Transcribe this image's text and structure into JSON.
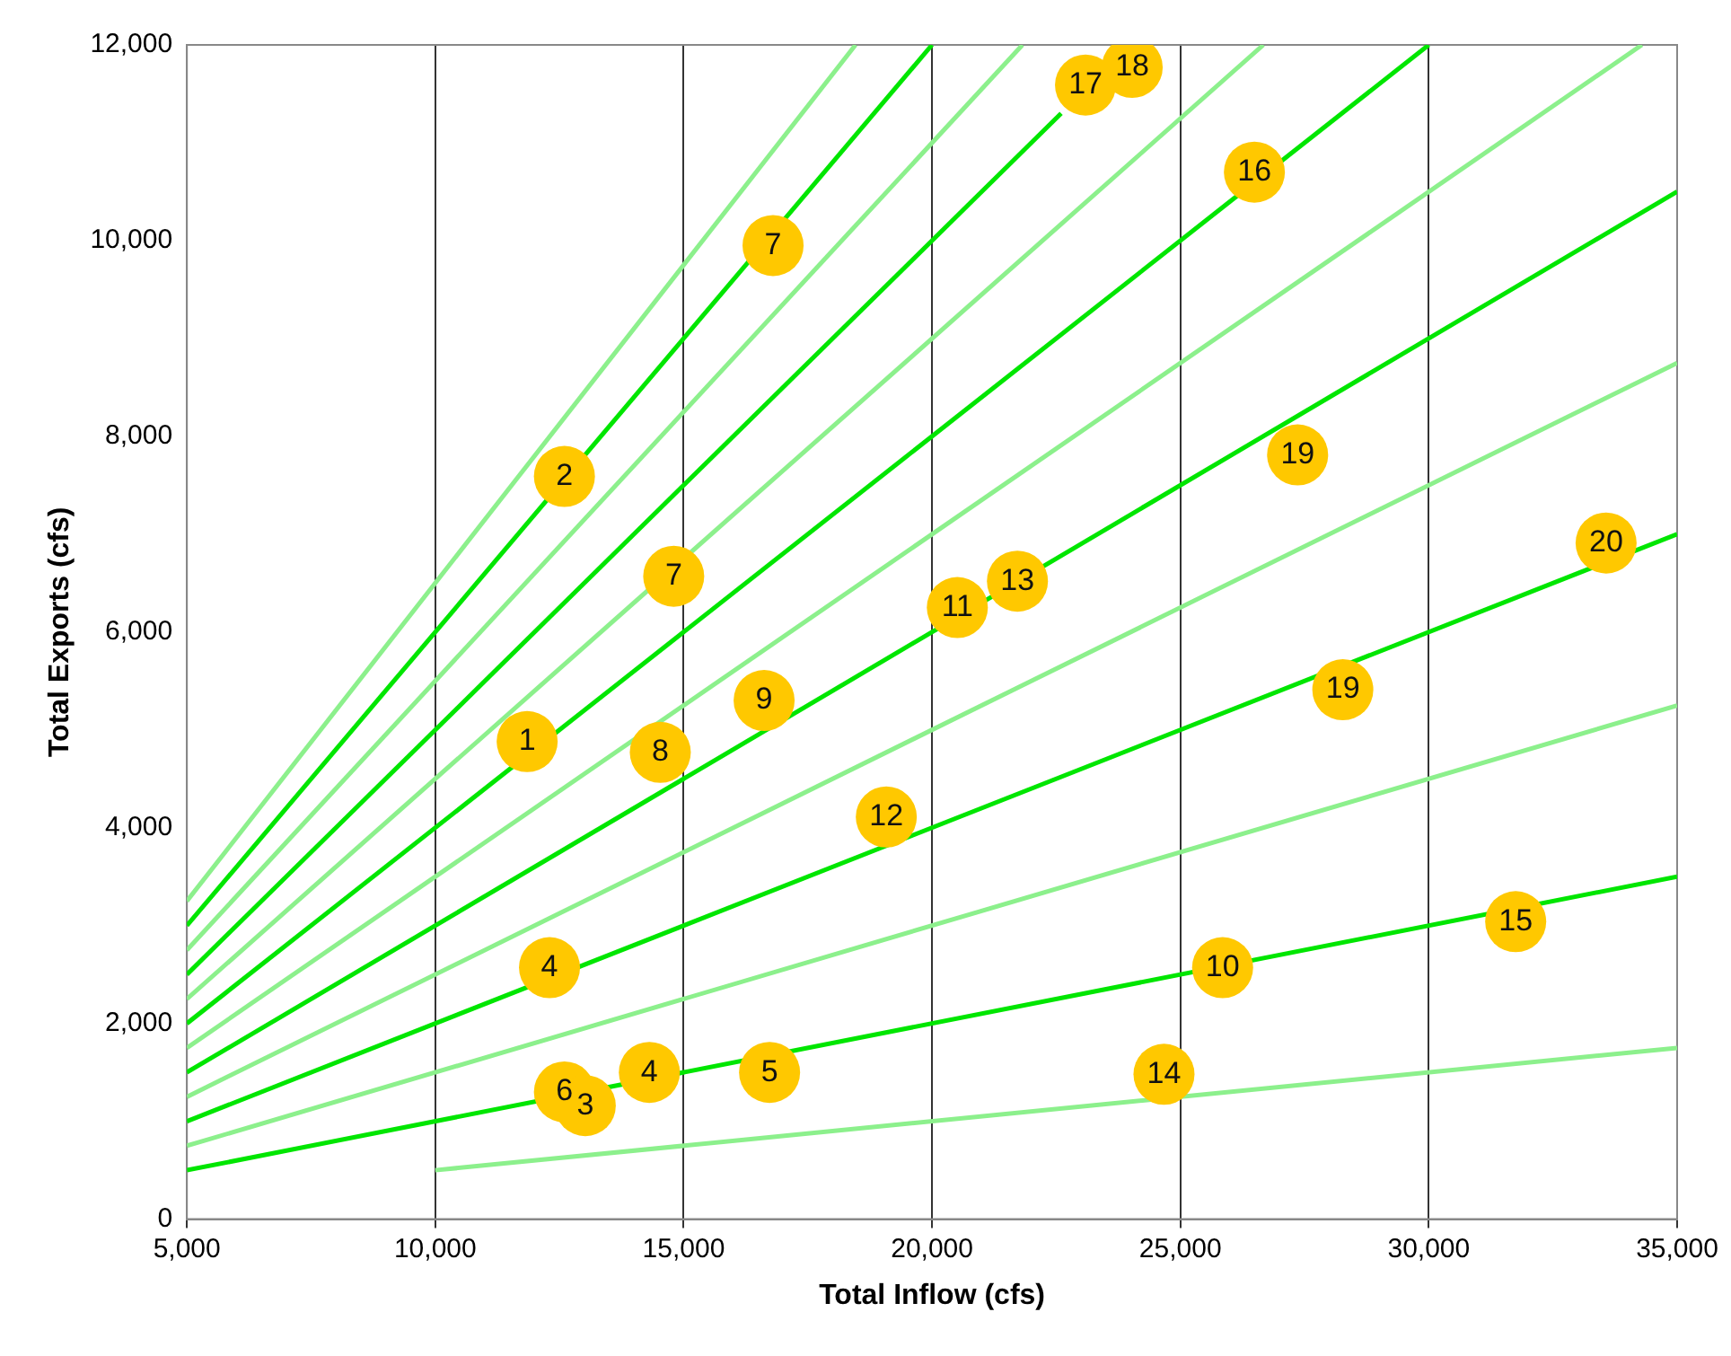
{
  "chart_data": {
    "type": "scatter",
    "xlabel": "Total Inflow (cfs)",
    "ylabel": "Total Exports (cfs)",
    "xlim": [
      5000,
      35000
    ],
    "ylim": [
      0,
      12000
    ],
    "xticks": [
      {
        "value": 5000,
        "label": "5,000"
      },
      {
        "value": 10000,
        "label": "10,000"
      },
      {
        "value": 15000,
        "label": "15,000"
      },
      {
        "value": 20000,
        "label": "20,000"
      },
      {
        "value": 25000,
        "label": "25,000"
      },
      {
        "value": 30000,
        "label": "30,000"
      },
      {
        "value": 35000,
        "label": "35,000"
      }
    ],
    "yticks": [
      0,
      {
        "value": 2000,
        "label": "2,000"
      },
      {
        "value": 4000,
        "label": "4,000"
      },
      {
        "value": 6000,
        "label": "6,000"
      },
      {
        "value": 8000,
        "label": "8,000"
      },
      {
        "value": 10000,
        "label": "10,000"
      },
      {
        "value": 12000,
        "label": "12,000"
      }
    ],
    "grid": "x",
    "legend": false,
    "series": [
      {
        "marker": "circle",
        "color": "#ffc800",
        "x": [
          11850,
          12600,
          16800,
          14800,
          23090,
          24030,
          26490,
          27360,
          33570,
          21720,
          20510,
          16620,
          14530,
          19080,
          28270,
          12300,
          25850,
          31750,
          24670,
          16730,
          14310,
          12600,
          13020
        ],
        "values": [
          4880,
          7590,
          9950,
          6570,
          11590,
          11770,
          10700,
          7810,
          6910,
          6520,
          6250,
          5300,
          4770,
          4110,
          5410,
          2570,
          2570,
          3040,
          1480,
          1500,
          1500,
          1300,
          1160
        ]
      },
      {
        "type": "line",
        "color": "#00e600",
        "x": [
          5000,
          35000
        ],
        "values": [
          500,
          3500
        ]
      },
      {
        "type": "line",
        "color": "#00e600",
        "x": [
          5000,
          35000
        ],
        "values": [
          1000,
          7000
        ]
      },
      {
        "type": "line",
        "color": "#00e600",
        "x": [
          5000,
          35000
        ],
        "values": [
          1500,
          10500
        ]
      },
      {
        "type": "line",
        "color": "#00e600",
        "x": [
          5000,
          30000
        ],
        "values": [
          2000,
          12000
        ]
      },
      {
        "type": "line",
        "color": "#00e600",
        "x": [
          5000,
          22600
        ],
        "values": [
          2500,
          11300
        ]
      },
      {
        "type": "line",
        "color": "#00e600",
        "x": [
          5000,
          20000
        ],
        "values": [
          3000,
          12000
        ]
      },
      {
        "type": "line",
        "color": "#8cf08c",
        "x": [
          10000,
          35000
        ],
        "values": [
          500,
          1750
        ]
      },
      {
        "type": "line",
        "color": "#8cf08c",
        "x": [
          5000,
          35000
        ],
        "values": [
          750,
          5250
        ]
      },
      {
        "type": "line",
        "color": "#8cf08c",
        "x": [
          5000,
          35000
        ],
        "values": [
          1250,
          8750
        ]
      },
      {
        "type": "line",
        "color": "#8cf08c",
        "x": [
          5000,
          34290
        ],
        "values": [
          1750,
          12000
        ]
      },
      {
        "type": "line",
        "color": "#8cf08c",
        "x": [
          5000,
          26670
        ],
        "values": [
          2250,
          12000
        ]
      },
      {
        "type": "line",
        "color": "#8cf08c",
        "x": [
          5000,
          21820
        ],
        "values": [
          2750,
          12000
        ]
      },
      {
        "type": "line",
        "color": "#8cf08c",
        "x": [
          5000,
          18460
        ],
        "values": [
          3250,
          12000
        ]
      }
    ],
    "annotations": [
      {
        "text": "1",
        "x": 11850,
        "y": 4880
      },
      {
        "text": "2",
        "x": 12600,
        "y": 7590
      },
      {
        "text": "7",
        "x": 16800,
        "y": 9950
      },
      {
        "text": "7",
        "x": 14800,
        "y": 6570
      },
      {
        "text": "17",
        "x": 23090,
        "y": 11590
      },
      {
        "text": "18",
        "x": 24030,
        "y": 11770
      },
      {
        "text": "16",
        "x": 26490,
        "y": 10700
      },
      {
        "text": "19",
        "x": 27360,
        "y": 7810
      },
      {
        "text": "20",
        "x": 33570,
        "y": 6910
      },
      {
        "text": "13",
        "x": 21720,
        "y": 6520
      },
      {
        "text": "11",
        "x": 20510,
        "y": 6250
      },
      {
        "text": "9",
        "x": 16620,
        "y": 5300
      },
      {
        "text": "8",
        "x": 14530,
        "y": 4770
      },
      {
        "text": "12",
        "x": 19080,
        "y": 4110
      },
      {
        "text": "19",
        "x": 28270,
        "y": 5410
      },
      {
        "text": "4",
        "x": 12300,
        "y": 2570
      },
      {
        "text": "10",
        "x": 25850,
        "y": 2570
      },
      {
        "text": "15",
        "x": 31750,
        "y": 3040
      },
      {
        "text": "14",
        "x": 24670,
        "y": 1480
      },
      {
        "text": "5",
        "x": 16730,
        "y": 1500
      },
      {
        "text": "4",
        "x": 14310,
        "y": 1500
      },
      {
        "text": "6",
        "x": 12600,
        "y": 1300
      },
      {
        "text": "3",
        "x": 13020,
        "y": 1160
      }
    ]
  }
}
